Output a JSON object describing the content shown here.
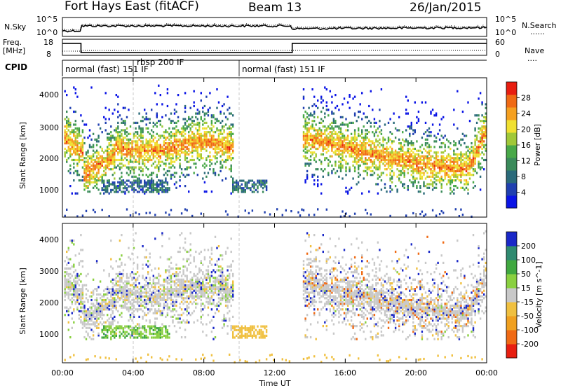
{
  "header": {
    "station": "Fort Hays East (fitACF)",
    "beam": "Beam 13",
    "date": "26/Jan/2015"
  },
  "noise_panel": {
    "left_label": "N.Sky",
    "right_label": "N.Search",
    "right_label_line": "......",
    "left_ticks": [
      "10^5",
      "10^0"
    ],
    "right_ticks": [
      "10^5",
      "10^0"
    ]
  },
  "freq_panel": {
    "left_label_line1": "Freq.",
    "left_label_line2": "[MHz]",
    "right_label": "Nave",
    "right_label_line": "....",
    "left_ticks": [
      "18",
      "8"
    ],
    "right_ticks": [
      "60",
      "0"
    ],
    "freq_steps": [
      {
        "t": 0,
        "mhz": 17.5
      },
      {
        "t": 1.05,
        "mhz": 10.2
      },
      {
        "t": 13.0,
        "mhz": 17.5
      },
      {
        "t": 24,
        "mhz": 17.5
      }
    ]
  },
  "cpid": {
    "label": "CPID",
    "segments": [
      {
        "start": 0,
        "end": 4.0,
        "text": "normal (fast) 151 IF"
      },
      {
        "start": 4.0,
        "end": 10.0,
        "text": "rbsp 200 IF"
      },
      {
        "start": 10.0,
        "end": 24,
        "text": "normal (fast) 151 IF"
      }
    ]
  },
  "chart_data": [
    {
      "type": "heatmap",
      "name": "Power",
      "ylabel": "Slant Range [km]",
      "ylim": [
        0,
        4500
      ],
      "yticks": [
        "1000",
        "2000",
        "3000",
        "4000"
      ],
      "xlim": [
        0,
        24
      ],
      "colorbar": {
        "label": "Power [dB]",
        "ticks": [
          "4",
          "8",
          "12",
          "16",
          "20",
          "24",
          "28"
        ],
        "range": [
          0,
          32
        ],
        "colors": [
          "#0a14e6",
          "#2040b0",
          "#2a6a7a",
          "#3a8a5a",
          "#48a848",
          "#a0c838",
          "#f0e030",
          "#f5a020",
          "#f06a14",
          "#e81e10"
        ]
      }
    },
    {
      "type": "heatmap",
      "name": "Velocity",
      "ylabel": "Slant Range [km]",
      "ylim": [
        0,
        4500
      ],
      "yticks": [
        "1000",
        "2000",
        "3000",
        "4000"
      ],
      "xlim": [
        0,
        24
      ],
      "colorbar": {
        "label": "Velocity [m s^-1]",
        "ticks": [
          "200",
          "100",
          "50",
          "15",
          "-15",
          "-50",
          "-100",
          "-200"
        ],
        "colors": [
          "#1a28c8",
          "#2f8a70",
          "#40a840",
          "#8ad040",
          "#c8c8c8",
          "#f0c040",
          "#f0a020",
          "#f06a14",
          "#e81e10"
        ]
      }
    }
  ],
  "x_axis": {
    "label": "Time UT",
    "ticks": [
      "00:00",
      "04:00",
      "08:00",
      "12:00",
      "16:00",
      "20:00",
      "00:00"
    ]
  }
}
